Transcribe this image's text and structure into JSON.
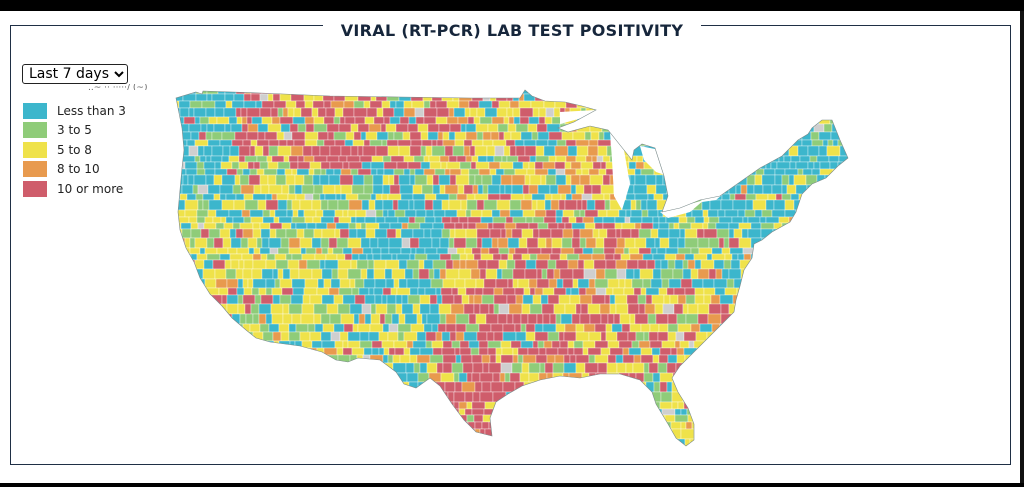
{
  "title": "VIRAL (RT-PCR) LAB TEST POSITIVITY",
  "period_select": {
    "value": "Last 7 days",
    "options": [
      "Last 7 days"
    ]
  },
  "legend": [
    {
      "label": "Less than 3",
      "color": "#3cb6cc"
    },
    {
      "label": "3 to 5",
      "color": "#8fcc79"
    },
    {
      "label": "5 to 8",
      "color": "#efe24a"
    },
    {
      "label": "8 to 10",
      "color": "#e89a4e"
    },
    {
      "label": "10 or more",
      "color": "#cf5d6b"
    }
  ],
  "no_data_color": "#cfcfcf",
  "map": {
    "regions": [
      {
        "name": "pacific-northwest",
        "dominant": "Less than 3"
      },
      {
        "name": "northern-plains",
        "dominant": "10 or more"
      },
      {
        "name": "mountain-west",
        "dominant": "5 to 8"
      },
      {
        "name": "southwest",
        "dominant": "5 to 8"
      },
      {
        "name": "kansas-nebraska",
        "dominant": "Less than 3"
      },
      {
        "name": "texas",
        "dominant": "10 or more"
      },
      {
        "name": "upper-midwest",
        "dominant": "5 to 8"
      },
      {
        "name": "south-central",
        "dominant": "10 or more"
      },
      {
        "name": "southeast",
        "dominant": "10 or more"
      },
      {
        "name": "florida",
        "dominant": "5 to 8"
      },
      {
        "name": "mid-atlantic",
        "dominant": "Less than 3"
      },
      {
        "name": "new-england",
        "dominant": "Less than 3"
      }
    ]
  }
}
